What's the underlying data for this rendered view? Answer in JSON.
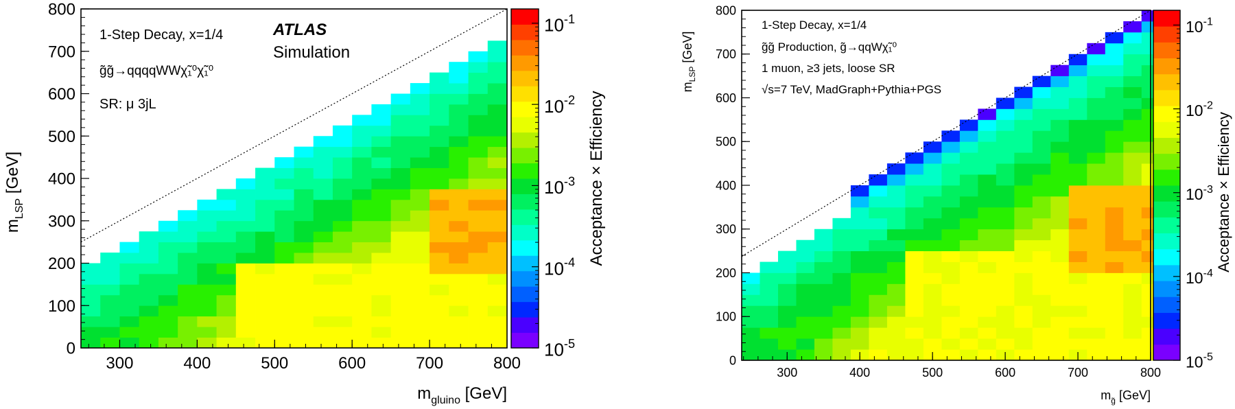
{
  "chart_data": [
    {
      "type": "heatmap",
      "title": "",
      "xlabel": "m",
      "xlabel_sub": "gluino",
      "xlabel_unit": " [GeV]",
      "ylabel": "m",
      "ylabel_sub": "LSP",
      "ylabel_unit": " [GeV]",
      "xlim": [
        250,
        800
      ],
      "ylim": [
        0,
        800
      ],
      "x_ticks": [
        "300",
        "400",
        "500",
        "600",
        "700",
        "800"
      ],
      "y_ticks": [
        "0",
        "100",
        "200",
        "300",
        "400",
        "500",
        "600",
        "700",
        "800"
      ],
      "colorbar_label": "Acceptance × Efficiency",
      "colorbar_scale": "log",
      "colorbar_range": [
        1e-05,
        0.15
      ],
      "colorbar_ticks": [
        {
          "base": "10",
          "exp": "-5",
          "value": 1e-05
        },
        {
          "base": "10",
          "exp": "-4",
          "value": 0.0001
        },
        {
          "base": "10",
          "exp": "-3",
          "value": 0.001
        },
        {
          "base": "10",
          "exp": "-2",
          "value": 0.01
        },
        {
          "base": "10",
          "exp": "-1",
          "value": 0.1
        }
      ],
      "annotations": [
        "1-Step Decay, x=1/4",
        "g̃g̃→qqqqWWχ̃₁⁰χ̃₁⁰",
        "SR: μ 3jL"
      ],
      "experiment_label": "ATLAS",
      "experiment_sublabel": "Simulation",
      "bin_width_x": 25,
      "bin_width_y": 25,
      "diagonal_line": "m_LSP = m_gluino"
    },
    {
      "type": "heatmap",
      "title": "",
      "xlabel": "m",
      "xlabel_sub": "g̃",
      "xlabel_unit": " [GeV]",
      "ylabel": "m",
      "ylabel_sub": "LSP",
      "ylabel_unit": " [GeV]",
      "xlim": [
        237.5,
        800
      ],
      "ylim": [
        0,
        800
      ],
      "x_ticks": [
        "300",
        "400",
        "500",
        "600",
        "700",
        "800"
      ],
      "y_ticks": [
        "0",
        "100",
        "200",
        "300",
        "400",
        "500",
        "600",
        "700",
        "800"
      ],
      "colorbar_label": "Acceptance × Efficiency",
      "colorbar_scale": "log",
      "colorbar_range": [
        1e-05,
        0.15
      ],
      "colorbar_ticks": [
        {
          "base": "10",
          "exp": "-5",
          "value": 1e-05
        },
        {
          "base": "10",
          "exp": "-4",
          "value": 0.0001
        },
        {
          "base": "10",
          "exp": "-3",
          "value": 0.001
        },
        {
          "base": "10",
          "exp": "-2",
          "value": 0.01
        },
        {
          "base": "10",
          "exp": "-1",
          "value": 0.1
        }
      ],
      "annotations": [
        "1-Step Decay, x=1/4",
        "g̃g̃ Production, g̃→qqWχ̃₁⁰",
        "1 muon, ≥3 jets, loose SR",
        "√s=7 TeV, MadGraph+Pythia+PGS"
      ],
      "bin_width_x": 25,
      "bin_width_y": 25,
      "diagonal_line": "m_LSP = m_g̃"
    }
  ],
  "colors": {
    "palette": [
      "#7a00ff",
      "#4a00ff",
      "#0028ff",
      "#0060ff",
      "#0090ff",
      "#00c0ff",
      "#00ffff",
      "#00ffc8",
      "#00ff96",
      "#00f060",
      "#00e030",
      "#28f000",
      "#78f000",
      "#b4f000",
      "#e8ff00",
      "#ffff00",
      "#ffe000",
      "#ffc000",
      "#ff9a00",
      "#ff7000",
      "#ff4000",
      "#ff0000"
    ]
  }
}
